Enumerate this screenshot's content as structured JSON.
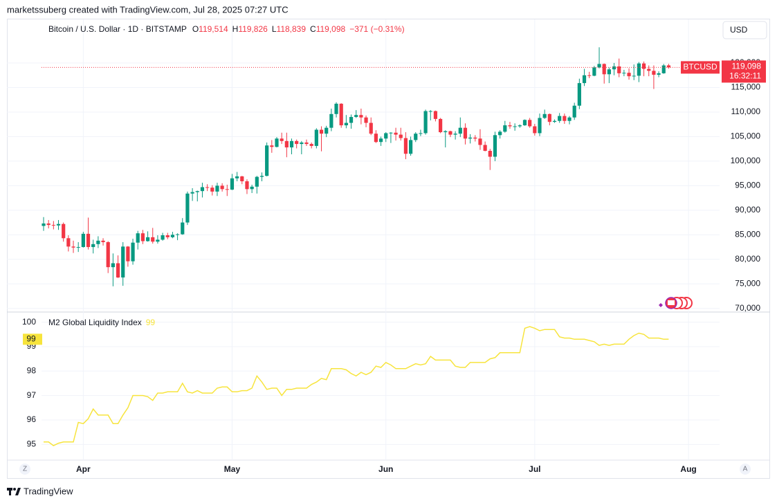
{
  "header": {
    "credit": "marketssuberg created with TradingView.com, Jul 28, 2025 07:27 UTC"
  },
  "buttons": {
    "currency": "USD",
    "zoom": "Z",
    "auto": "A"
  },
  "footer": {
    "brand": "TradingView"
  },
  "chart_data": [
    {
      "type": "candlestick",
      "title": "Bitcoin / U.S. Dollar · 1D · BITSTAMP",
      "ohlc_legend": [
        {
          "key": "O",
          "value": "119,514"
        },
        {
          "key": "H",
          "value": "119,826"
        },
        {
          "key": "L",
          "value": "118,839"
        },
        {
          "key": "C",
          "value": "119,098"
        }
      ],
      "change": "−371 (−0.31%)",
      "symbol_tag": "BTCUSD",
      "price_label": "119,098",
      "countdown": "16:32:11",
      "up_color": "#089981",
      "down_color": "#f23645",
      "grid": true,
      "categories": [
        null,
        null,
        null,
        null,
        null,
        null,
        null,
        null,
        "Apr",
        null,
        null,
        null,
        null,
        null,
        null,
        null,
        null,
        null,
        null,
        null,
        null,
        null,
        null,
        null,
        null,
        null,
        null,
        null,
        null,
        null,
        null,
        null,
        null,
        null,
        null,
        null,
        null,
        null,
        "May",
        null,
        null,
        null,
        null,
        null,
        null,
        null,
        null,
        null,
        null,
        null,
        null,
        null,
        null,
        null,
        null,
        null,
        null,
        null,
        null,
        null,
        null,
        null,
        null,
        null,
        null,
        null,
        null,
        null,
        null,
        "Jun",
        null,
        null,
        null,
        null,
        null,
        null,
        null,
        null,
        null,
        null,
        null,
        null,
        null,
        null,
        null,
        null,
        null,
        null,
        null,
        null,
        null,
        null,
        null,
        null,
        null,
        null,
        null,
        null,
        null,
        "Jul",
        null,
        null,
        null,
        null,
        null,
        null,
        null,
        null,
        null,
        null,
        null,
        null,
        null,
        null,
        null,
        null,
        null,
        null,
        null,
        null,
        null,
        null,
        null,
        null,
        null,
        null,
        null,
        null,
        null,
        null,
        "Aug",
        null,
        null,
        null,
        null,
        null,
        null
      ],
      "open": [
        86800,
        87300,
        87000,
        86900,
        87200,
        84300,
        82600,
        82400,
        82500,
        85200,
        82500,
        83100,
        83800,
        83500,
        78400,
        79200,
        76300,
        82600,
        79600,
        83400,
        85300,
        83700,
        84500,
        83600,
        84000,
        84900,
        84500,
        85000,
        85100,
        87500,
        93400,
        93700,
        93900,
        94700,
        94600,
        93800,
        95000,
        94300,
        94200,
        96500,
        96900,
        95900,
        94300,
        94800,
        96800,
        97000,
        103200,
        102900,
        104600,
        104100,
        102800,
        104100,
        103500,
        103800,
        103500,
        103100,
        106400,
        105600,
        106800,
        109600,
        111700,
        107300,
        107800,
        109000,
        109400,
        108900,
        107800,
        105600,
        103900,
        104600,
        105700,
        105800,
        105400,
        104700,
        101500,
        104300,
        105600,
        105700,
        110200,
        110200,
        108600,
        105900,
        106100,
        105400,
        105600,
        106800,
        104600,
        104800,
        104600,
        103300,
        102100,
        100900,
        105300,
        106000,
        107300,
        107100,
        107100,
        107300,
        108400,
        107100,
        105700,
        108800,
        109600,
        108000,
        108200,
        109200,
        108200,
        108900,
        111300,
        115900,
        117500,
        117400,
        119100,
        119800,
        117700,
        118700,
        119300,
        117900,
        118000,
        117300,
        117400,
        119900,
        118800,
        118400,
        117600,
        117900,
        119514,
        null,
        null,
        null,
        null,
        null,
        null,
        null,
        null,
        null,
        null
      ],
      "high": [
        88600,
        88000,
        87800,
        88000,
        87500,
        84900,
        83800,
        83500,
        85600,
        88500,
        84000,
        84700,
        84300,
        83700,
        81200,
        80800,
        83500,
        82700,
        84200,
        85800,
        86000,
        85700,
        86400,
        84900,
        85400,
        85400,
        85600,
        85300,
        88400,
        93800,
        94500,
        94000,
        95600,
        95300,
        95100,
        95600,
        95500,
        95200,
        97400,
        97800,
        97000,
        96300,
        95200,
        97000,
        97700,
        103800,
        104300,
        104900,
        105800,
        105800,
        104600,
        104400,
        104100,
        104400,
        103800,
        106700,
        107100,
        107200,
        110700,
        112000,
        111800,
        109400,
        109500,
        110400,
        110700,
        109300,
        108900,
        106300,
        105000,
        105900,
        105900,
        106800,
        106800,
        105900,
        105000,
        105900,
        106400,
        110500,
        110400,
        110300,
        108800,
        106300,
        106200,
        106100,
        108900,
        107700,
        105500,
        105300,
        106500,
        104000,
        102500,
        106000,
        106300,
        108200,
        108000,
        107700,
        107500,
        108500,
        108800,
        107600,
        109700,
        110500,
        109700,
        108500,
        109800,
        109700,
        109200,
        111900,
        116800,
        118800,
        118200,
        119400,
        123200,
        119900,
        119100,
        120000,
        120900,
        118600,
        118900,
        119700,
        120200,
        120300,
        119500,
        119500,
        118300,
        119800,
        119826,
        null,
        null,
        null,
        null,
        null,
        null,
        null,
        null,
        null,
        null
      ],
      "low": [
        85800,
        86300,
        86100,
        86000,
        83600,
        81600,
        81300,
        81500,
        82400,
        82000,
        81200,
        82300,
        82800,
        77200,
        74500,
        76200,
        74600,
        78500,
        78900,
        82000,
        83100,
        83600,
        83200,
        83200,
        83800,
        84100,
        84300,
        83900,
        85000,
        87000,
        91900,
        91800,
        92600,
        93900,
        93000,
        92900,
        93800,
        92900,
        94100,
        95900,
        95300,
        93300,
        93500,
        93400,
        95900,
        96900,
        101700,
        102800,
        103500,
        100800,
        101400,
        102600,
        101400,
        103100,
        102600,
        102600,
        102000,
        104900,
        106100,
        108900,
        106800,
        106700,
        106600,
        108800,
        107500,
        106900,
        105300,
        103700,
        103100,
        103900,
        103700,
        104200,
        104200,
        100400,
        101100,
        103900,
        105100,
        105400,
        108300,
        108100,
        105700,
        102800,
        104900,
        104400,
        104900,
        103400,
        103600,
        104000,
        102300,
        102000,
        98200,
        100000,
        104600,
        105800,
        106600,
        106200,
        106800,
        107200,
        106800,
        105200,
        105100,
        108600,
        107300,
        107800,
        107800,
        107600,
        107500,
        108400,
        110600,
        115300,
        116900,
        117300,
        118900,
        115800,
        115900,
        117500,
        117100,
        117300,
        116600,
        116500,
        116100,
        117300,
        117300,
        114700,
        117100,
        117800,
        118839,
        null,
        null,
        null,
        null,
        null,
        null,
        null,
        null,
        null,
        null
      ],
      "close": [
        87300,
        87000,
        86900,
        87200,
        84300,
        82600,
        82400,
        82500,
        85200,
        82500,
        83100,
        83800,
        83500,
        78400,
        79200,
        76300,
        82600,
        79600,
        83400,
        85300,
        83700,
        84500,
        83600,
        84000,
        84900,
        84500,
        85000,
        85100,
        87500,
        93400,
        93700,
        93900,
        94700,
        94600,
        93800,
        95000,
        94300,
        94200,
        96500,
        96900,
        95900,
        94300,
        94800,
        96800,
        97000,
        103200,
        102900,
        104600,
        104100,
        102800,
        104100,
        103500,
        103800,
        103500,
        103100,
        106400,
        105600,
        106800,
        109600,
        111700,
        107300,
        107800,
        109000,
        109400,
        108900,
        107800,
        105600,
        103900,
        104600,
        105700,
        105800,
        105400,
        104700,
        101500,
        104300,
        105600,
        105700,
        110200,
        110200,
        108600,
        105900,
        106100,
        105400,
        105600,
        106800,
        104600,
        104800,
        104600,
        103300,
        102100,
        100900,
        105300,
        106000,
        107300,
        107100,
        107100,
        107300,
        108400,
        107100,
        105700,
        108800,
        109600,
        108000,
        108200,
        109200,
        108200,
        108900,
        111300,
        115900,
        117500,
        117400,
        119100,
        119800,
        117700,
        118700,
        119300,
        117900,
        118000,
        117300,
        117400,
        119900,
        118800,
        118400,
        117600,
        117900,
        119500,
        119098,
        null,
        null,
        null,
        null,
        null,
        null,
        null,
        null,
        null,
        null
      ],
      "ylim": [
        69400,
        128600
      ],
      "yticks": [
        {
          "value": 70000,
          "label": "70,000"
        },
        {
          "value": 75000,
          "label": "75,000"
        },
        {
          "value": 80000,
          "label": "80,000"
        },
        {
          "value": 85000,
          "label": "85,000"
        },
        {
          "value": 90000,
          "label": "90,000"
        },
        {
          "value": 95000,
          "label": "95,000"
        },
        {
          "value": 100000,
          "label": "100,000"
        },
        {
          "value": 105000,
          "label": "105,000"
        },
        {
          "value": 110000,
          "label": "110,000"
        },
        {
          "value": 115000,
          "label": "115,000"
        },
        {
          "value": 120000,
          "label": "120,000"
        }
      ]
    },
    {
      "type": "line",
      "title": "M2 Global Liquidity Index",
      "grid": true,
      "series": [
        {
          "name": "M2 Global Liquidity Index",
          "color": "#f7e43c",
          "last_label": "99",
          "values": [
            95.1,
            95.1,
            94.95,
            95.05,
            95.1,
            95.1,
            95.1,
            95.9,
            95.85,
            96.05,
            96.45,
            96.2,
            96.2,
            96.2,
            95.85,
            95.85,
            96.2,
            96.5,
            97.0,
            97.0,
            97.0,
            96.95,
            96.8,
            97.1,
            97.1,
            97.15,
            97.15,
            97.15,
            97.5,
            97.15,
            97.1,
            97.2,
            97.1,
            97.1,
            97.1,
            97.3,
            97.35,
            97.35,
            97.15,
            97.15,
            97.2,
            97.2,
            97.3,
            97.8,
            97.55,
            97.25,
            97.3,
            97.3,
            97.0,
            97.25,
            97.25,
            97.3,
            97.3,
            97.3,
            97.45,
            97.55,
            97.7,
            97.65,
            98.1,
            98.1,
            98.1,
            98.05,
            97.9,
            97.8,
            97.95,
            97.85,
            97.95,
            98.2,
            98.15,
            98.35,
            98.25,
            98.1,
            98.1,
            98.1,
            98.2,
            98.3,
            98.25,
            98.3,
            98.6,
            98.45,
            98.45,
            98.45,
            98.45,
            98.2,
            98.15,
            98.15,
            98.35,
            98.35,
            98.35,
            98.35,
            98.5,
            98.55,
            98.75,
            98.75,
            98.75,
            98.75,
            98.75,
            99.75,
            99.82,
            99.75,
            99.65,
            99.7,
            99.7,
            99.7,
            99.4,
            99.35,
            99.35,
            99.3,
            99.3,
            99.3,
            99.25,
            99.2,
            99.05,
            99.1,
            99.05,
            99.1,
            99.1,
            99.1,
            99.3,
            99.45,
            99.55,
            99.5,
            99.35,
            99.35,
            99.35,
            99.3,
            99.3,
            null,
            null,
            null,
            null,
            null,
            null,
            null,
            null,
            null,
            null
          ]
        }
      ],
      "ylim": [
        94.5,
        100.3
      ],
      "yticks": [
        95,
        96,
        97,
        98,
        99,
        100
      ]
    }
  ]
}
